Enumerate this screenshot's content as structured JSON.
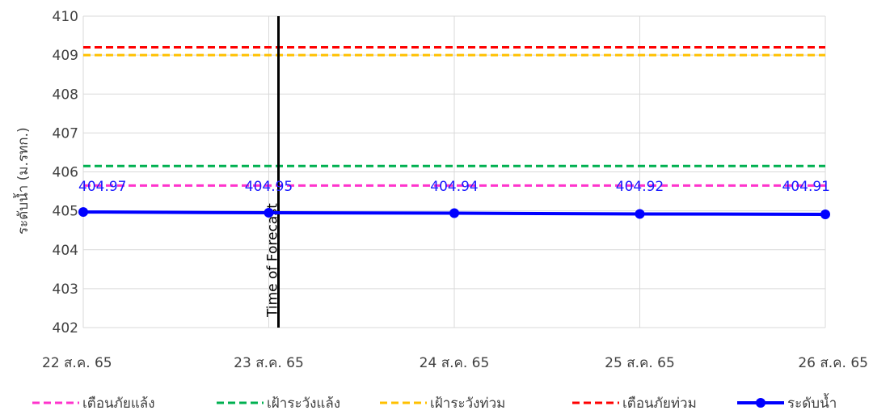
{
  "chart_data": {
    "type": "line",
    "ylabel": "ระดับน้ำ (ม.รทก.)",
    "ylim": [
      402,
      410
    ],
    "yticks": [
      "402",
      "403",
      "404",
      "405",
      "406",
      "407",
      "408",
      "409",
      "410"
    ],
    "categories": [
      "22 ส.ค. 65",
      "23 ส.ค. 65",
      "24 ส.ค. 65",
      "25 ส.ค. 65",
      "26 ส.ค. 65"
    ],
    "grid": true,
    "legend_position": "bottom",
    "annotation": {
      "text": "Time of Forecast",
      "x": "23 ส.ค. 65"
    },
    "thresholds": [
      {
        "name": "เตือนภัยแล้ง",
        "value": 405.65,
        "color": "#ff33cc"
      },
      {
        "name": "เฝ้าระวังแล้ง",
        "value": 406.15,
        "color": "#00b050"
      },
      {
        "name": "เฝ้าระวังท่วม",
        "value": 409.0,
        "color": "#ffc000"
      },
      {
        "name": "เตือนภัยท่วม",
        "value": 409.2,
        "color": "#ff0000"
      }
    ],
    "series": [
      {
        "name": "ระดับน้ำ",
        "color": "#0000ff",
        "values": [
          404.97,
          404.95,
          404.94,
          404.92,
          404.91
        ],
        "labels": [
          "404.97",
          "404.95",
          "404.94",
          "404.92",
          "404.91"
        ]
      }
    ]
  }
}
